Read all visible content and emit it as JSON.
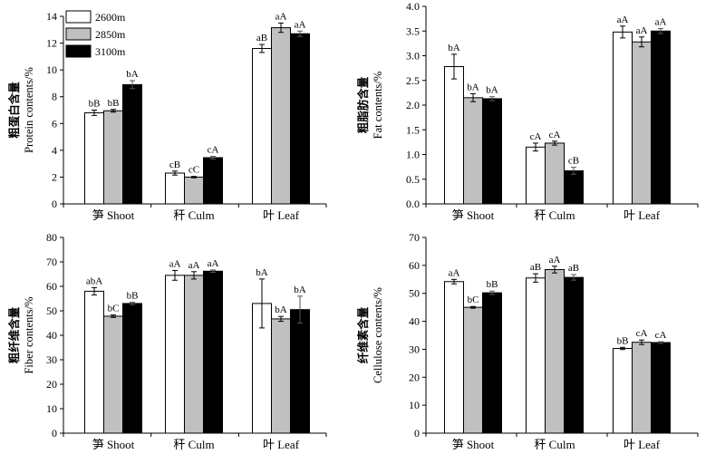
{
  "legend": {
    "entries": [
      {
        "name": "2600m",
        "color": "#ffffff"
      },
      {
        "name": "2850m",
        "color": "#c0c0c0"
      },
      {
        "name": "3100m",
        "color": "#000000"
      }
    ]
  },
  "chart_data": [
    {
      "type": "bar",
      "categories": [
        "笋 Shoot",
        "秆 Culm",
        "叶 Leaf"
      ],
      "ylabel_cn": "粗蛋白含量",
      "ylabel_en": "Protein contents/%",
      "ylim": [
        0,
        14
      ],
      "yticks": [
        0,
        2,
        4,
        6,
        8,
        10,
        12,
        14
      ],
      "series": [
        {
          "name": "2600m",
          "values": [
            6.8,
            2.3,
            11.6
          ],
          "errors": [
            0.2,
            0.15,
            0.3
          ],
          "labels": [
            "bB",
            "cB",
            "aB"
          ]
        },
        {
          "name": "2850m",
          "values": [
            6.95,
            2.0,
            13.15
          ],
          "errors": [
            0.1,
            0.05,
            0.35
          ],
          "labels": [
            "bB",
            "cC",
            "aA"
          ]
        },
        {
          "name": "3100m",
          "values": [
            8.9,
            3.45,
            12.7
          ],
          "errors": [
            0.3,
            0.1,
            0.2
          ],
          "labels": [
            "bA",
            "cA",
            "aA"
          ]
        }
      ]
    },
    {
      "type": "bar",
      "categories": [
        "笋 Shoot",
        "秆 Culm",
        "叶 Leaf"
      ],
      "ylabel_cn": "粗脂肪含量",
      "ylabel_en": "Fat  contents/%",
      "ylim": [
        0,
        4
      ],
      "yticks": [
        "0.0",
        "0.5",
        "1.0",
        "1.5",
        "2.0",
        "2.5",
        "3.0",
        "3.5",
        "4.0"
      ],
      "series": [
        {
          "name": "2600m",
          "values": [
            2.78,
            1.15,
            3.48
          ],
          "errors": [
            0.25,
            0.08,
            0.12
          ],
          "labels": [
            "bA",
            "cA",
            "aA"
          ]
        },
        {
          "name": "2850m",
          "values": [
            2.15,
            1.23,
            3.28
          ],
          "errors": [
            0.08,
            0.04,
            0.1
          ],
          "labels": [
            "bA",
            "cA",
            "aA"
          ]
        },
        {
          "name": "3100m",
          "values": [
            2.13,
            0.67,
            3.5
          ],
          "errors": [
            0.04,
            0.07,
            0.05
          ],
          "labels": [
            "bA",
            "cB",
            "aA"
          ]
        }
      ]
    },
    {
      "type": "bar",
      "categories": [
        "笋 Shoot",
        "秆 Culm",
        "叶 Leaf"
      ],
      "ylabel_cn": "粗纤维含量",
      "ylabel_en": "Fiber contents/%",
      "ylim": [
        0,
        80
      ],
      "yticks": [
        0,
        10,
        20,
        30,
        40,
        50,
        60,
        70,
        80
      ],
      "series": [
        {
          "name": "2600m",
          "values": [
            58,
            64.5,
            53
          ],
          "errors": [
            1.5,
            2,
            10
          ],
          "labels": [
            "abA",
            "aA",
            "bA"
          ]
        },
        {
          "name": "2850m",
          "values": [
            47.8,
            64.5,
            46.7
          ],
          "errors": [
            0.5,
            1.5,
            1.0
          ],
          "labels": [
            "bC",
            "aA",
            "bA"
          ]
        },
        {
          "name": "3100m",
          "values": [
            53,
            66.2,
            50.5
          ],
          "errors": [
            0.5,
            0.5,
            5.5
          ],
          "labels": [
            "bB",
            "aA",
            "bA"
          ]
        }
      ]
    },
    {
      "type": "bar",
      "categories": [
        "笋 Shoot",
        "秆 Culm",
        "叶 Leaf"
      ],
      "ylabel_cn": "纤维素含量",
      "ylabel_en": "Cellulose contents/%",
      "ylim": [
        0,
        70
      ],
      "yticks": [
        0,
        10,
        20,
        30,
        40,
        50,
        60,
        70
      ],
      "series": [
        {
          "name": "2600m",
          "values": [
            54.2,
            55.5,
            30.3
          ],
          "errors": [
            0.8,
            1.5,
            0.4
          ],
          "labels": [
            "aA",
            "aB",
            "bB"
          ]
        },
        {
          "name": "2850m",
          "values": [
            45,
            58.5,
            32.5
          ],
          "errors": [
            0.3,
            1.2,
            0.8
          ],
          "labels": [
            "bC",
            "aA",
            "cA"
          ]
        },
        {
          "name": "3100m",
          "values": [
            50.2,
            55.7,
            32.4
          ],
          "errors": [
            0.6,
            1.0,
            0.3
          ],
          "labels": [
            "bB",
            "aB",
            "cA"
          ]
        }
      ]
    }
  ]
}
